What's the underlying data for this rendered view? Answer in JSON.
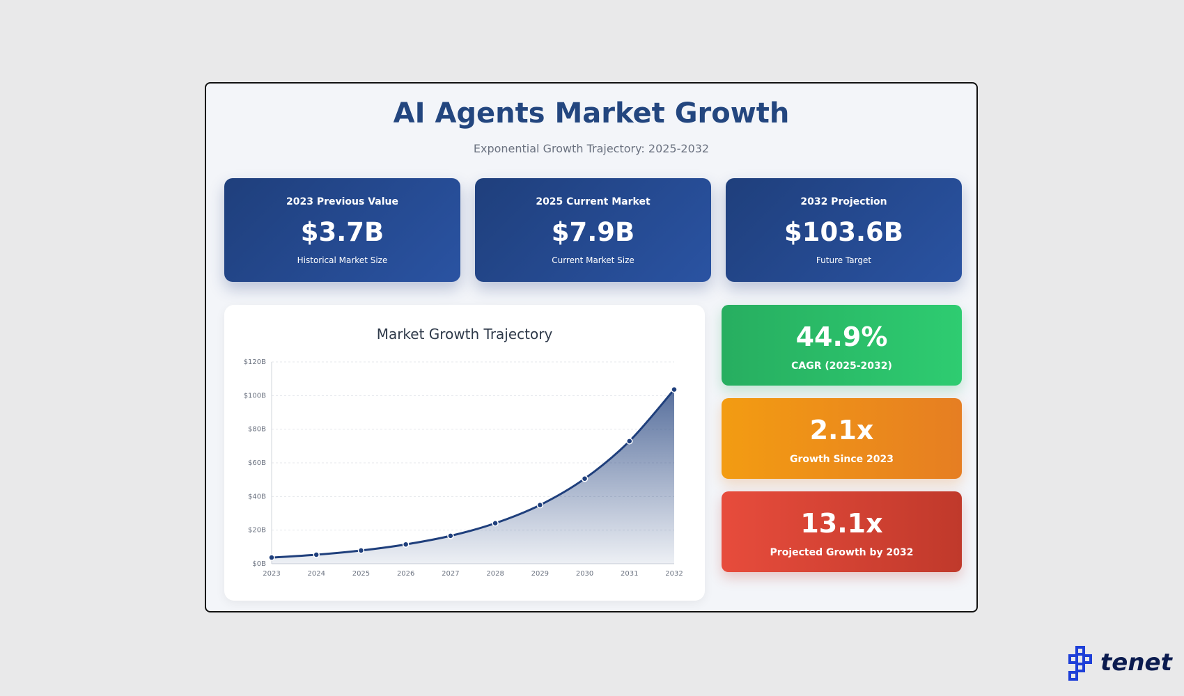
{
  "header": {
    "title": "AI Agents Market Growth",
    "subtitle": "Exponential Growth Trajectory: 2025-2032"
  },
  "stats": [
    {
      "label": "2023 Previous Value",
      "value": "$3.7B",
      "sub": "Historical Market Size"
    },
    {
      "label": "2025 Current Market",
      "value": "$7.9B",
      "sub": "Current Market Size"
    },
    {
      "label": "2032 Projection",
      "value": "$103.6B",
      "sub": "Future Target"
    }
  ],
  "metrics": [
    {
      "value": "44.9%",
      "label": "CAGR (2025-2032)",
      "color": "#27ae60"
    },
    {
      "value": "2.1x",
      "label": "Growth Since 2023",
      "color": "#f39c12"
    },
    {
      "value": "13.1x",
      "label": "Projected Growth by 2032",
      "color": "#e74c3c"
    }
  ],
  "chart_data": {
    "type": "area",
    "title": "Market Growth Trajectory",
    "x": [
      "2023",
      "2024",
      "2025",
      "2026",
      "2027",
      "2028",
      "2029",
      "2030",
      "2031",
      "2032"
    ],
    "values": [
      3.7,
      5.4,
      7.9,
      11.5,
      16.6,
      24.1,
      34.9,
      50.6,
      72.9,
      103.6
    ],
    "unit": "$B",
    "y_ticks": [
      "$0B",
      "$20B",
      "$40B",
      "$60B",
      "$80B",
      "$100B",
      "$120B"
    ],
    "ylim": [
      0,
      120
    ],
    "grid": true,
    "line_color": "#1f3f7c"
  },
  "branding": {
    "logo_text": "tenet"
  }
}
